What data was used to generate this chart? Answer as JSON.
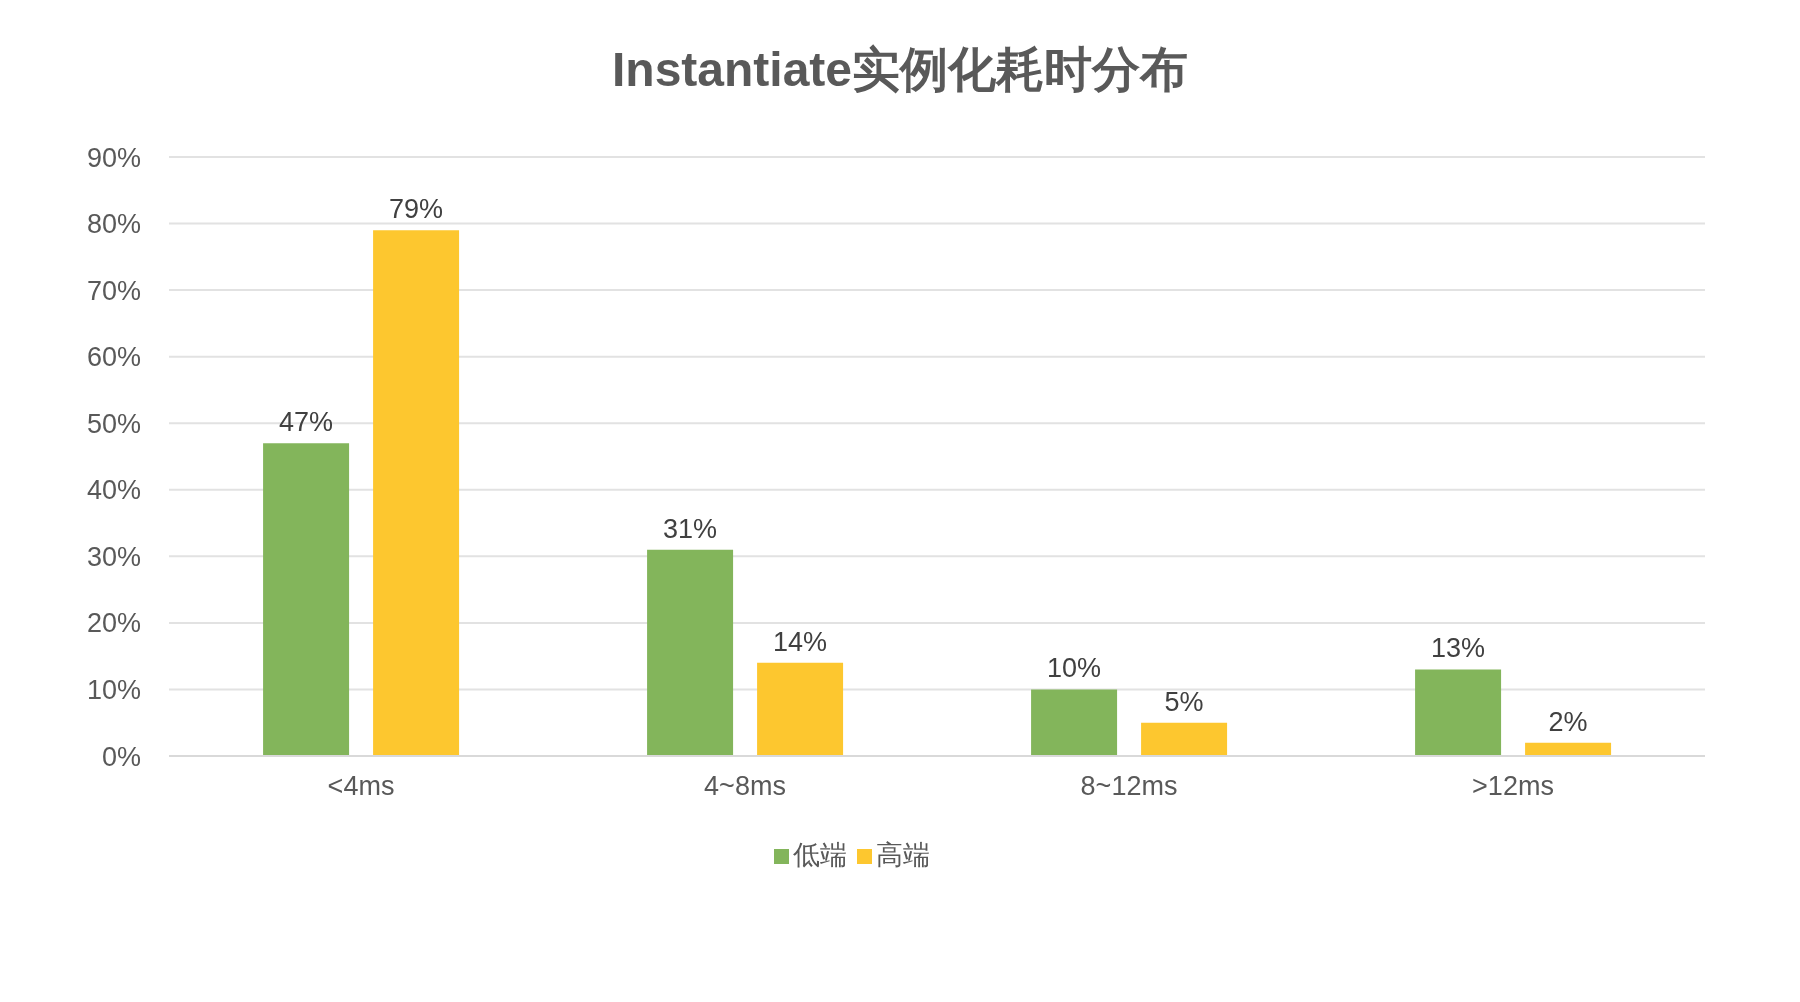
{
  "chart_data": {
    "type": "bar",
    "title": "Instantiate实例化耗时分布",
    "categories": [
      "<4ms",
      "4~8ms",
      "8~12ms",
      ">12ms"
    ],
    "series": [
      {
        "name": "低端",
        "color": "#83b55b",
        "values": [
          47,
          31,
          10,
          13
        ],
        "value_labels": [
          "47%",
          "31%",
          "10%",
          "13%"
        ]
      },
      {
        "name": "高端",
        "color": "#fdc72f",
        "values": [
          79,
          14,
          5,
          2
        ],
        "value_labels": [
          "79%",
          "14%",
          "5%",
          "2%"
        ]
      }
    ],
    "ylim": [
      0,
      90
    ],
    "yticks": [
      {
        "value": 0,
        "label": "0%"
      },
      {
        "value": 10,
        "label": "10%"
      },
      {
        "value": 20,
        "label": "20%"
      },
      {
        "value": 30,
        "label": "30%"
      },
      {
        "value": 40,
        "label": "40%"
      },
      {
        "value": 50,
        "label": "50%"
      },
      {
        "value": 60,
        "label": "60%"
      },
      {
        "value": 70,
        "label": "70%"
      },
      {
        "value": 80,
        "label": "80%"
      },
      {
        "value": 90,
        "label": "90%"
      }
    ],
    "grid": "y",
    "legend": "bottom"
  }
}
